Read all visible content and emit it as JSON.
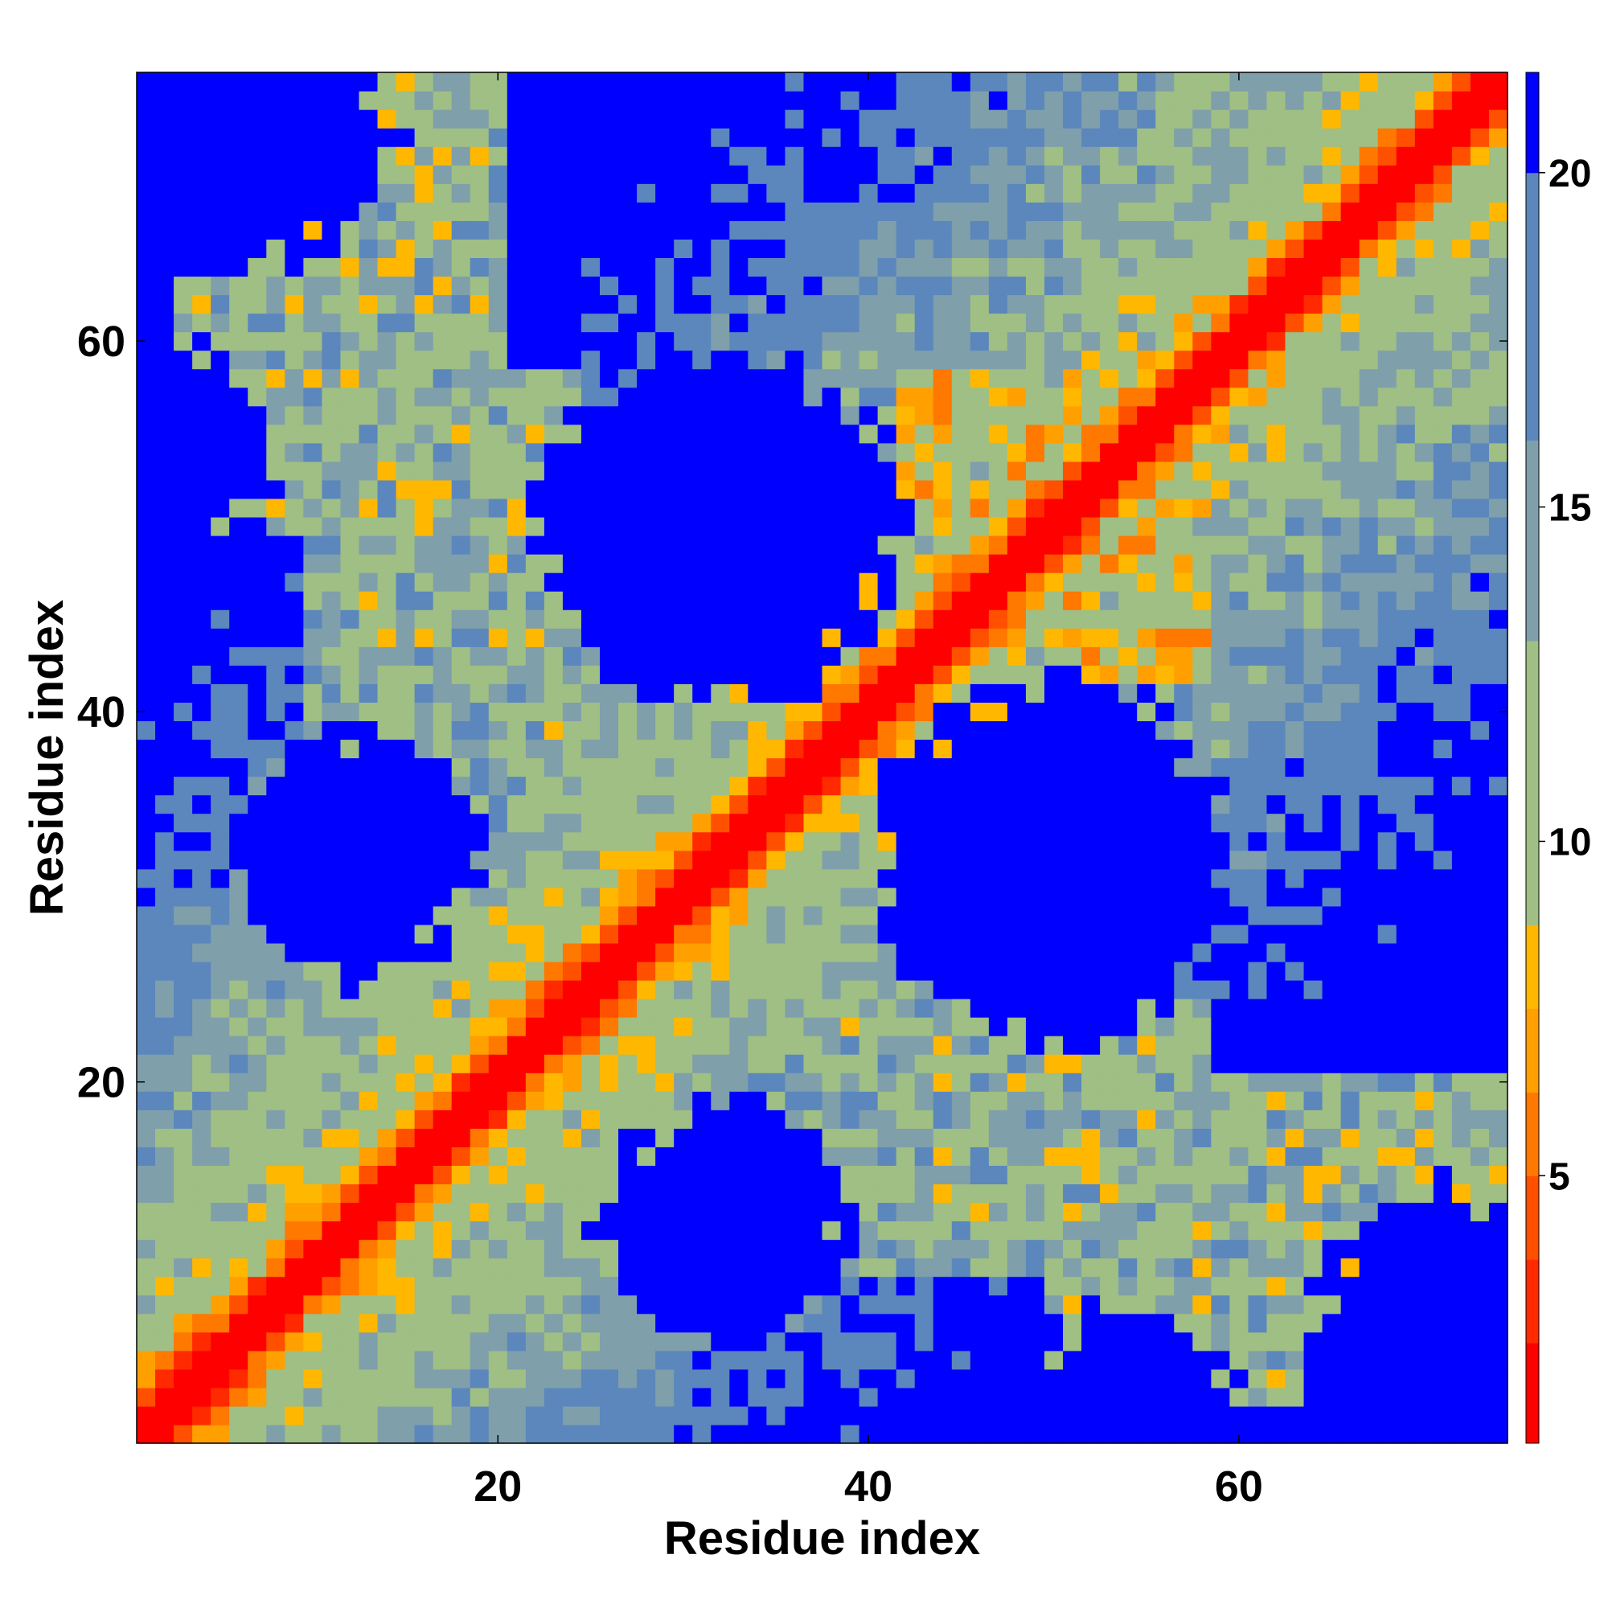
{
  "chart_data": {
    "type": "heatmap",
    "title": "",
    "xlabel": "Residue index",
    "ylabel": "Residue index",
    "n_residues": 74,
    "x_range": [
      1,
      74
    ],
    "y_range": [
      1,
      74
    ],
    "x_ticks": [
      20,
      40,
      60
    ],
    "y_ticks": [
      20,
      40,
      60
    ],
    "x_tick_labels": [
      "20",
      "40",
      "60"
    ],
    "y_tick_labels": [
      "20",
      "40",
      "60"
    ],
    "symmetric": true,
    "colorbar": {
      "range": [
        1,
        21.5
      ],
      "ticks": [
        5,
        10,
        15,
        20
      ],
      "tick_labels": [
        "5",
        "10",
        "15",
        "20"
      ],
      "bands": [
        {
          "upper": 2.5,
          "color": "#ff0000"
        },
        {
          "upper": 3.75,
          "color": "#ff2a00"
        },
        {
          "upper": 5.0,
          "color": "#ff5000"
        },
        {
          "upper": 6.25,
          "color": "#ff7800"
        },
        {
          "upper": 7.5,
          "color": "#ffa000"
        },
        {
          "upper": 8.75,
          "color": "#ffb700"
        },
        {
          "upper": 13.0,
          "color": "#9fbf84"
        },
        {
          "upper": 16.0,
          "color": "#7f9fab"
        },
        {
          "upper": 20.0,
          "color": "#5b87bd"
        },
        {
          "upper": 99,
          "color": "#0000ff"
        }
      ]
    },
    "regions": {
      "note_pairs_are_residue_indices_i_j": true,
      "far_clusters_blue": [
        {
          "center": [
            29,
            13
          ],
          "radius": 7.5
        },
        {
          "center": [
            50,
            29
          ],
          "radius": 9.5
        },
        {
          "center": [
            12,
            32
          ],
          "radius": 6.5
        },
        {
          "center": [
            32,
            50
          ],
          "radius": 9.5
        },
        {
          "center": [
            72,
            6
          ],
          "radius": 8.0
        },
        {
          "center": [
            6,
            72
          ],
          "radius": 8.0
        },
        {
          "center": [
            2,
            54
          ],
          "radius": 5.5
        },
        {
          "center": [
            54,
            2
          ],
          "radius": 5.5
        }
      ],
      "contact_groups": [
        {
          "a": [
            3,
            20
          ],
          "b": [
            50,
            74
          ],
          "mean": 12.5
        },
        {
          "a": [
            38,
            58
          ],
          "b": [
            10,
            24
          ],
          "mean": 12.8
        },
        {
          "a": [
            48,
            58
          ],
          "b": [
            42,
            52
          ],
          "mean": 9.5
        }
      ]
    }
  }
}
